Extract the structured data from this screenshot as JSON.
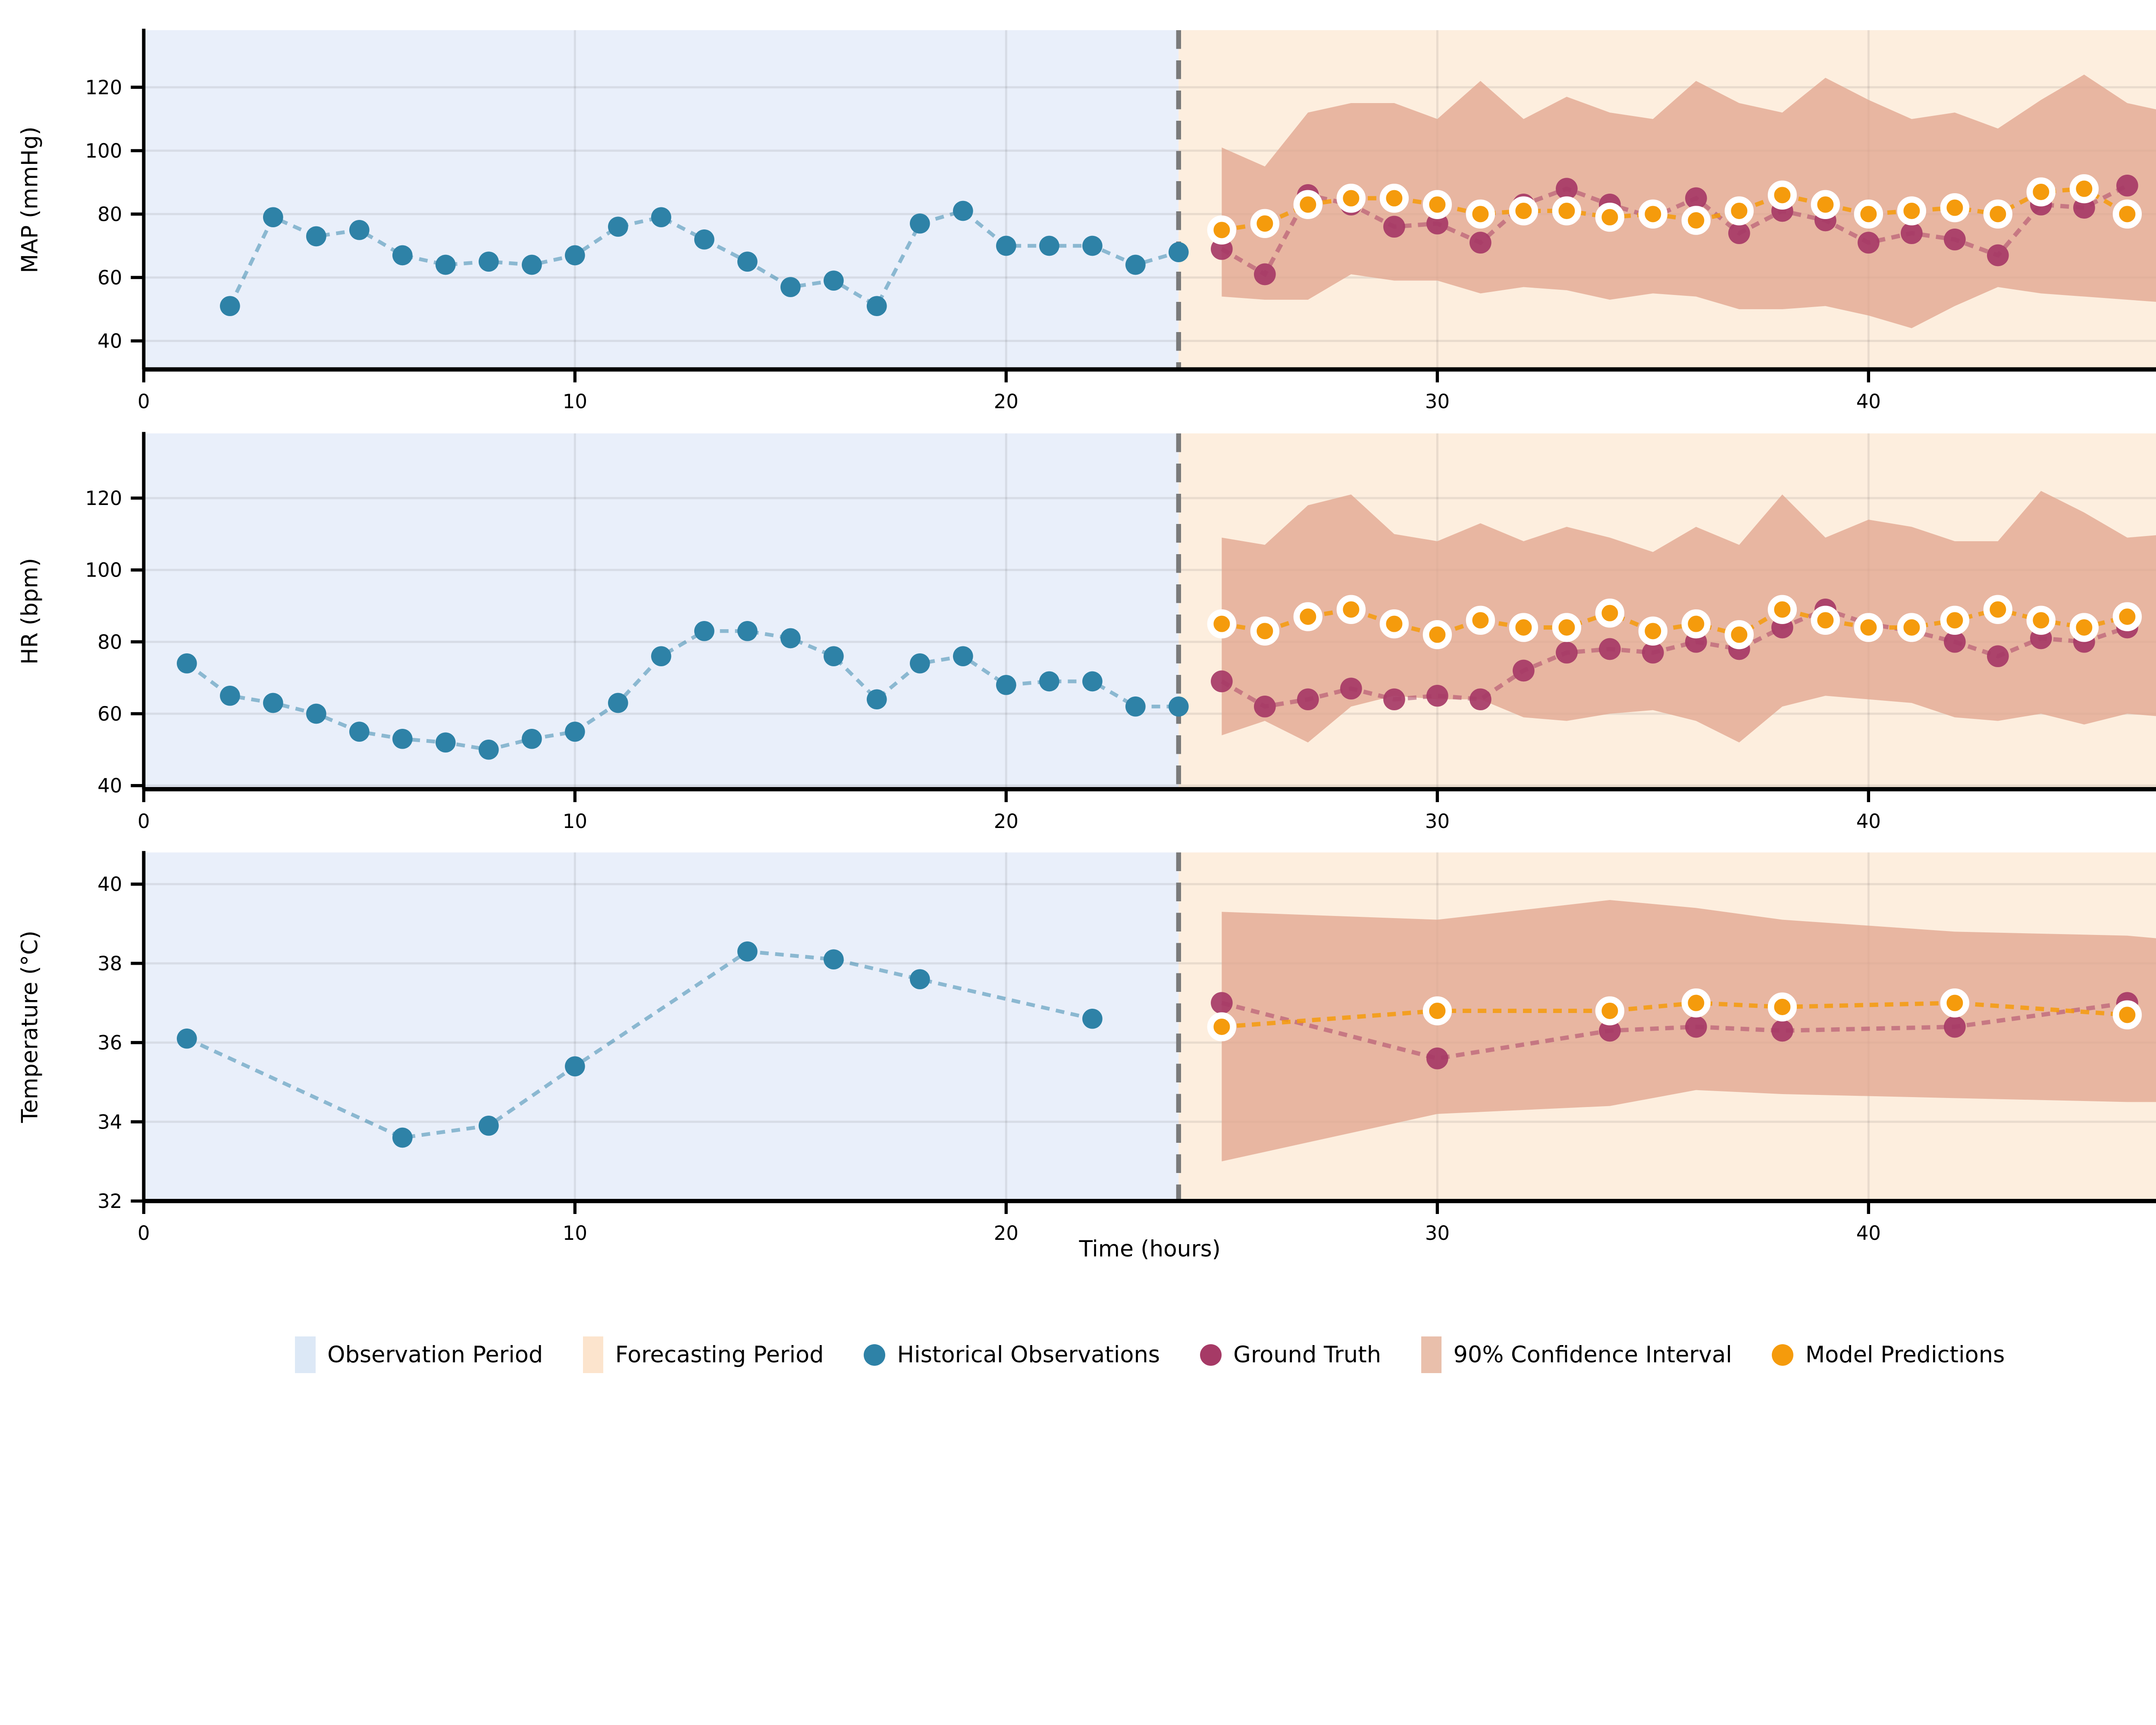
{
  "figure": {
    "xlabel": "Time (hours)",
    "xticks": [
      0,
      10,
      20,
      30,
      40
    ],
    "xlim": [
      0,
      46.7
    ],
    "observation_end_hour": 24,
    "colors": {
      "observation_bg": "#e9effa",
      "forecasting_bg": "#fdeede",
      "ci_band": "#e2a68f",
      "historical": "#2e82a7",
      "ground_truth": "#a63a66",
      "predictions": "#f59b0c",
      "prediction_ring": "#ffffff",
      "divider": "#7a7a7a",
      "grid": "rgba(60,60,60,0.10)",
      "axis": "#000000",
      "text": "#000000"
    },
    "legend": {
      "items": [
        {
          "label": "Observation Period",
          "shape": "rect",
          "color": "#dce8f6"
        },
        {
          "label": "Forecasting Period",
          "shape": "rect",
          "color": "#fce4cd"
        },
        {
          "label": "Historical Observations",
          "shape": "dot",
          "color": "#2e82a7"
        },
        {
          "label": "Ground Truth",
          "shape": "dot",
          "color": "#a63a66"
        },
        {
          "label": "90% Confidence Interval",
          "shape": "rect",
          "color": "#e9bfab"
        },
        {
          "label": "Model Predictions",
          "shape": "dot",
          "color": "#f59b0c"
        }
      ]
    }
  },
  "chart_data": [
    {
      "id": "map",
      "type": "line",
      "ylabel": "MAP (mmHg)",
      "ylim": [
        31,
        138
      ],
      "yticks": [
        40,
        60,
        80,
        100,
        120
      ],
      "series": {
        "historical": {
          "x": [
            2,
            3,
            4,
            5,
            6,
            7,
            8,
            9,
            10,
            11,
            12,
            13,
            14,
            15,
            16,
            17,
            18,
            19,
            20,
            21,
            22,
            23,
            24
          ],
          "y": [
            51,
            79,
            73,
            75,
            67,
            64,
            65,
            64,
            67,
            76,
            79,
            72,
            65,
            57,
            59,
            51,
            77,
            81,
            70,
            70,
            70,
            64,
            68
          ]
        },
        "ground_truth": {
          "x": [
            25,
            26,
            27,
            28,
            29,
            30,
            31,
            32,
            33,
            34,
            35,
            36,
            37,
            38,
            39,
            40,
            41,
            42,
            43,
            44,
            45,
            46
          ],
          "y": [
            69,
            61,
            86,
            83,
            76,
            77,
            71,
            83,
            88,
            83,
            79,
            85,
            74,
            81,
            78,
            71,
            74,
            72,
            67,
            83,
            82,
            89
          ]
        },
        "predictions": {
          "x": [
            25,
            26,
            27,
            28,
            29,
            30,
            31,
            32,
            33,
            34,
            35,
            36,
            37,
            38,
            39,
            40,
            41,
            42,
            43,
            44,
            45,
            46
          ],
          "y": [
            75,
            77,
            83,
            85,
            85,
            83,
            80,
            81,
            81,
            79,
            80,
            78,
            81,
            86,
            83,
            80,
            81,
            82,
            80,
            87,
            88,
            80
          ]
        },
        "ci_90": {
          "x": [
            25,
            26,
            27,
            28,
            29,
            30,
            31,
            32,
            33,
            34,
            35,
            36,
            37,
            38,
            39,
            40,
            41,
            42,
            43,
            44,
            45,
            46,
            47
          ],
          "upper": [
            101,
            95,
            112,
            115,
            115,
            110,
            122,
            110,
            117,
            112,
            110,
            122,
            115,
            112,
            123,
            116,
            110,
            112,
            107,
            116,
            124,
            115,
            112
          ],
          "lower": [
            54,
            53,
            53,
            61,
            59,
            59,
            55,
            57,
            56,
            53,
            55,
            54,
            50,
            50,
            51,
            48,
            44,
            51,
            57,
            55,
            54,
            53,
            52
          ]
        }
      }
    },
    {
      "id": "hr",
      "type": "line",
      "ylabel": "HR (bpm)",
      "ylim": [
        39,
        138
      ],
      "yticks": [
        40,
        60,
        80,
        100,
        120
      ],
      "series": {
        "historical": {
          "x": [
            1,
            2,
            3,
            4,
            5,
            6,
            7,
            8,
            9,
            10,
            11,
            12,
            13,
            14,
            15,
            16,
            17,
            18,
            19,
            20,
            21,
            22,
            23,
            24
          ],
          "y": [
            74,
            65,
            63,
            60,
            55,
            53,
            52,
            50,
            53,
            55,
            63,
            76,
            83,
            83,
            81,
            76,
            64,
            74,
            76,
            68,
            69,
            69,
            62,
            62
          ]
        },
        "ground_truth": {
          "x": [
            25,
            26,
            27,
            28,
            29,
            30,
            31,
            32,
            33,
            34,
            35,
            36,
            37,
            38,
            39,
            40,
            41,
            42,
            43,
            44,
            45,
            46
          ],
          "y": [
            69,
            62,
            64,
            67,
            64,
            65,
            64,
            72,
            77,
            78,
            77,
            80,
            78,
            84,
            89,
            85,
            83,
            80,
            76,
            81,
            80,
            84
          ]
        },
        "predictions": {
          "x": [
            25,
            26,
            27,
            28,
            29,
            30,
            31,
            32,
            33,
            34,
            35,
            36,
            37,
            38,
            39,
            40,
            41,
            42,
            43,
            44,
            45,
            46
          ],
          "y": [
            85,
            83,
            87,
            89,
            85,
            82,
            86,
            84,
            84,
            88,
            83,
            85,
            82,
            89,
            86,
            84,
            84,
            86,
            89,
            86,
            84,
            87
          ]
        },
        "ci_90": {
          "x": [
            25,
            26,
            27,
            28,
            29,
            30,
            31,
            32,
            33,
            34,
            35,
            36,
            37,
            38,
            39,
            40,
            41,
            42,
            43,
            44,
            45,
            46,
            47
          ],
          "upper": [
            109,
            107,
            118,
            121,
            110,
            108,
            113,
            108,
            112,
            109,
            105,
            112,
            107,
            121,
            109,
            114,
            112,
            108,
            108,
            122,
            116,
            109,
            110
          ],
          "lower": [
            54,
            58,
            52,
            62,
            65,
            64,
            64,
            59,
            58,
            60,
            61,
            58,
            52,
            62,
            65,
            64,
            63,
            59,
            58,
            60,
            57,
            60,
            59
          ]
        }
      }
    },
    {
      "id": "temperature",
      "type": "line",
      "ylabel": "Temperature (°C)",
      "ylim": [
        32,
        40.8
      ],
      "yticks": [
        32,
        34,
        36,
        38,
        40
      ],
      "series": {
        "historical": {
          "x": [
            1,
            6,
            8,
            10,
            14,
            16,
            18,
            22
          ],
          "y": [
            36.1,
            33.6,
            33.9,
            35.4,
            38.3,
            38.1,
            37.6,
            36.6
          ]
        },
        "ground_truth": {
          "x": [
            25,
            30,
            34,
            36,
            38,
            42,
            46
          ],
          "y": [
            37.0,
            35.6,
            36.3,
            36.4,
            36.3,
            36.4,
            37.0
          ]
        },
        "predictions": {
          "x": [
            25,
            30,
            34,
            36,
            38,
            42,
            46
          ],
          "y": [
            36.4,
            36.8,
            36.8,
            37.0,
            36.9,
            37.0,
            36.7
          ]
        },
        "ci_90": {
          "x": [
            25,
            30,
            34,
            36,
            38,
            42,
            46,
            47
          ],
          "upper": [
            39.3,
            39.1,
            39.6,
            39.4,
            39.1,
            38.8,
            38.7,
            38.6
          ],
          "lower": [
            33.0,
            34.2,
            34.4,
            34.8,
            34.7,
            34.6,
            34.5,
            34.5
          ]
        }
      }
    }
  ]
}
